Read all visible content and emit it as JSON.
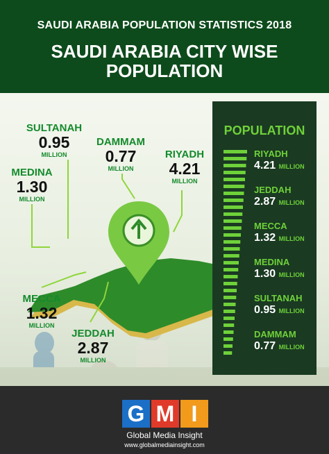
{
  "header": {
    "top_line": "SAUDI ARABIA POPULATION STATISTICS 2018",
    "title_line1": "SAUDI ARABIA CITY WISE",
    "title_line2": "POPULATION"
  },
  "map_labels": [
    {
      "city": "SULTANAH",
      "value": "0.95",
      "unit": "MILLION"
    },
    {
      "city": "DAMMAM",
      "value": "0.77",
      "unit": "MILLION"
    },
    {
      "city": "RIYADH",
      "value": "4.21",
      "unit": "MILLION"
    },
    {
      "city": "MEDINA",
      "value": "1.30",
      "unit": "MILLION"
    },
    {
      "city": "MECCA",
      "value": "1.32",
      "unit": "MILLION"
    },
    {
      "city": "JEDDAH",
      "value": "2.87",
      "unit": "MILLION"
    }
  ],
  "panel": {
    "title": "POPULATION",
    "items": [
      {
        "city": "RIYADH",
        "value": "4.21",
        "unit": "MILLION"
      },
      {
        "city": "JEDDAH",
        "value": "2.87",
        "unit": "MILLION"
      },
      {
        "city": "MECCA",
        "value": "1.32",
        "unit": "MILLION"
      },
      {
        "city": "MEDINA",
        "value": "1.30",
        "unit": "MILLION"
      },
      {
        "city": "SULTANAH",
        "value": "0.95",
        "unit": "MILLION"
      },
      {
        "city": "DAMMAM",
        "value": "0.77",
        "unit": "MILLION"
      }
    ]
  },
  "footer": {
    "logo_letters": [
      "G",
      "M",
      "I"
    ],
    "company": "Global Media Insight",
    "url": "www.globalmediainsight.com"
  },
  "colors": {
    "header_bg": "#0e4b1c",
    "accent_green": "#6fd13a",
    "map_green": "#2e8b2a",
    "panel_bg": "#1a3a22",
    "logo_blue": "#1b6fc6",
    "logo_red": "#e03a2a",
    "logo_orange": "#f19a1b"
  },
  "icons": [
    "up-arrow-icon",
    "map-pin-icon"
  ]
}
